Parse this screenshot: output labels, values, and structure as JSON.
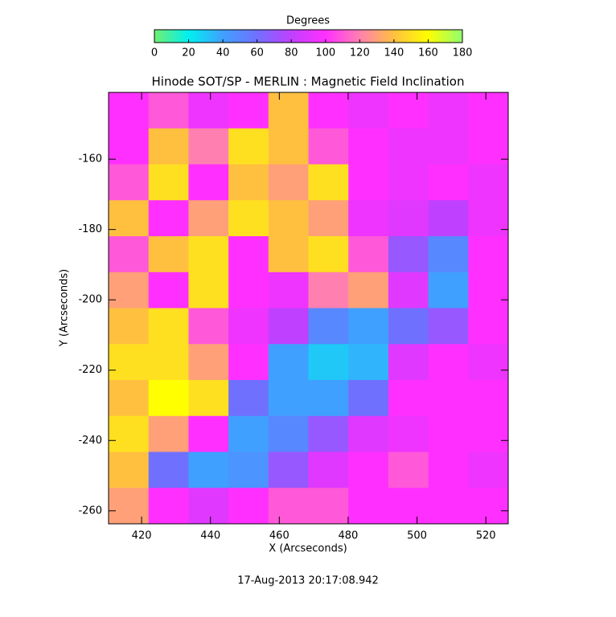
{
  "chart_data": {
    "type": "heatmap",
    "title": "Hinode SOT/SP - MERLIN : Magnetic Field Inclination",
    "x_label": "X (Arcseconds)",
    "y_label": "Y (Arcseconds)",
    "colorbar_label": "Degrees",
    "footer": "17-Aug-2013 20:17:08.942",
    "xlim": [
      410.4,
      526.5
    ],
    "xticks": [
      420,
      440,
      460,
      480,
      500,
      520
    ],
    "ylim": [
      -263.7,
      -141.0
    ],
    "yticks": [
      -160,
      -180,
      -200,
      -220,
      -240,
      -260
    ],
    "zlim": [
      0,
      180
    ],
    "zticks": [
      0,
      20,
      40,
      60,
      80,
      100,
      120,
      140,
      160,
      180
    ],
    "colorscale": [
      "#70f070",
      "#00f0f0",
      "#40a0ff",
      "#7070ff",
      "#c040ff",
      "#ff30ff",
      "#ff80b0",
      "#ffc040",
      "#ffff00",
      "#90ff70"
    ],
    "z": [
      [
        100,
        110,
        95,
        100,
        140,
        100,
        95,
        100,
        95,
        100
      ],
      [
        100,
        140,
        120,
        150,
        140,
        110,
        100,
        95,
        95,
        100
      ],
      [
        110,
        150,
        100,
        140,
        130,
        150,
        100,
        95,
        100,
        95
      ],
      [
        140,
        100,
        130,
        150,
        140,
        130,
        95,
        90,
        80,
        95
      ],
      [
        110,
        140,
        150,
        100,
        140,
        150,
        110,
        70,
        50,
        100
      ],
      [
        130,
        100,
        150,
        100,
        95,
        120,
        130,
        90,
        40,
        100
      ],
      [
        140,
        150,
        110,
        95,
        80,
        50,
        40,
        60,
        70,
        100
      ],
      [
        150,
        150,
        130,
        100,
        40,
        30,
        35,
        90,
        100,
        95
      ],
      [
        140,
        160,
        150,
        60,
        40,
        40,
        60,
        100,
        100,
        100
      ],
      [
        150,
        130,
        100,
        40,
        50,
        70,
        90,
        95,
        100,
        100
      ],
      [
        140,
        60,
        40,
        45,
        70,
        90,
        100,
        110,
        100,
        95
      ],
      [
        130,
        100,
        90,
        100,
        110,
        110,
        100,
        100,
        100,
        100
      ]
    ]
  }
}
